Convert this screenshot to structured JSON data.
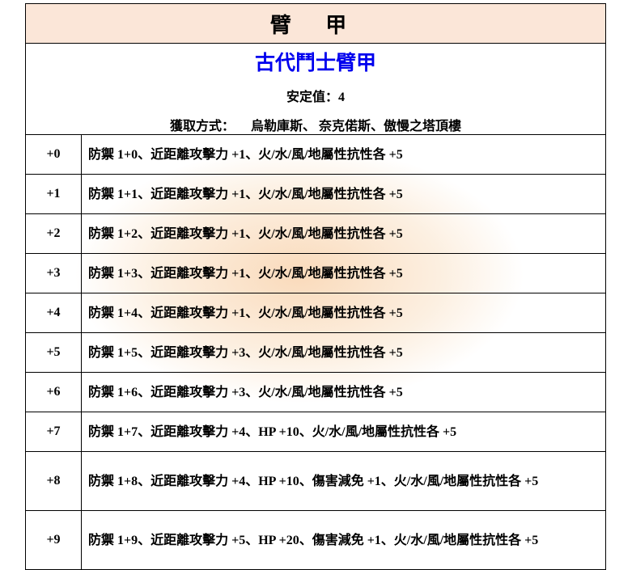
{
  "header": {
    "title": "臂 甲"
  },
  "item": {
    "name": "古代鬥士臂甲",
    "stability": "安定值：4",
    "source_label": "獲取方式：",
    "source_value": "烏勒庫斯、 奈克偌斯、傲慢之塔頂樓"
  },
  "rows": [
    {
      "level": "+0",
      "desc": "防禦 1+0、近距離攻擊力 +1、火/水/風/地屬性抗性各 +5"
    },
    {
      "level": "+1",
      "desc": "防禦 1+1、近距離攻擊力 +1、火/水/風/地屬性抗性各 +5"
    },
    {
      "level": "+2",
      "desc": "防禦 1+2、近距離攻擊力 +1、火/水/風/地屬性抗性各 +5"
    },
    {
      "level": "+3",
      "desc": "防禦 1+3、近距離攻擊力 +1、火/水/風/地屬性抗性各 +5"
    },
    {
      "level": "+4",
      "desc": "防禦 1+4、近距離攻擊力 +1、火/水/風/地屬性抗性各 +5"
    },
    {
      "level": "+5",
      "desc": "防禦 1+5、近距離攻擊力 +3、火/水/風/地屬性抗性各 +5"
    },
    {
      "level": "+6",
      "desc": "防禦 1+6、近距離攻擊力 +3、火/水/風/地屬性抗性各 +5"
    },
    {
      "level": "+7",
      "desc": "防禦 1+7、近距離攻擊力 +4、HP +10、火/水/風/地屬性抗性各 +5"
    },
    {
      "level": "+8",
      "desc": "防禦 1+8、近距離攻擊力 +4、HP +10、傷害減免 +1、火/水/風/地屬性抗性各 +5"
    },
    {
      "level": "+9",
      "desc": "防禦 1+9、近距離攻擊力 +5、HP +20、傷害減免 +1、火/水/風/地屬性抗性各 +5"
    }
  ]
}
